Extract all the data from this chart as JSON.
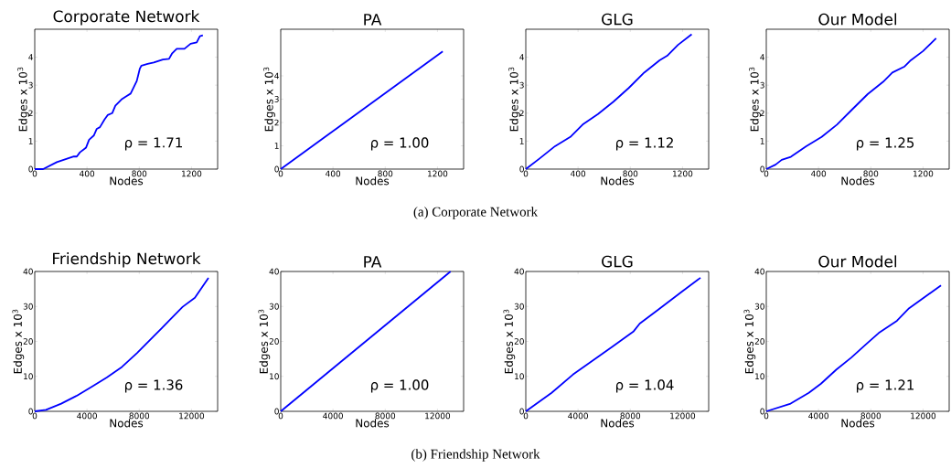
{
  "chart_data": [
    {
      "type": "line",
      "title": "Corporate Network",
      "xlabel": "Nodes",
      "ylabel": "Edges x 10$^{3}$",
      "color": "#0000ff",
      "x": [
        0,
        64,
        169,
        299,
        322,
        346,
        393,
        416,
        452,
        475,
        499,
        534,
        558,
        593,
        617,
        664,
        699,
        734,
        758,
        781,
        805,
        817,
        864,
        911,
        981,
        1028,
        1052,
        1087,
        1146,
        1193,
        1240,
        1264,
        1287
      ],
      "values": [
        0,
        0,
        0.25,
        0.45,
        0.45,
        0.6,
        0.77,
        1.05,
        1.2,
        1.44,
        1.5,
        1.77,
        1.93,
        2.0,
        2.27,
        2.49,
        2.6,
        2.7,
        2.93,
        3.15,
        3.6,
        3.7,
        3.76,
        3.81,
        3.92,
        3.94,
        4.14,
        4.3,
        4.3,
        4.48,
        4.53,
        4.75,
        4.78
      ],
      "xlim": [
        0,
        1400
      ],
      "ylim": [
        0,
        5
      ],
      "xticks": [
        0,
        400,
        800,
        1200
      ],
      "yticks": [
        0,
        1,
        2,
        3,
        4
      ],
      "annotations": [
        "ρ = 1.71",
        "(a) Corporate Network"
      ]
    },
    {
      "type": "line",
      "title": "PA",
      "xlabel": "Nodes",
      "ylabel": "Edges x 10$^{3}$",
      "color": "#0000ff",
      "x": [
        0,
        1240
      ],
      "values": [
        0,
        5.05
      ],
      "xlim": [
        0,
        1400
      ],
      "ylim": [
        0,
        6
      ],
      "xticks": [
        0,
        400,
        800,
        1200
      ],
      "yticks": [
        0,
        1,
        2,
        3,
        4
      ],
      "annotations": [
        "ρ = 1.00"
      ]
    },
    {
      "type": "line",
      "title": "GLG",
      "xlabel": "Nodes",
      "ylabel": "Edges x 10$^{3}$",
      "color": "#0000ff",
      "x": [
        0,
        106,
        224,
        341,
        435,
        553,
        671,
        788,
        906,
        1024,
        1082,
        1165,
        1270
      ],
      "values": [
        0,
        0.38,
        0.82,
        1.15,
        1.59,
        1.97,
        2.41,
        2.9,
        3.45,
        3.89,
        4.05,
        4.44,
        4.82
      ],
      "xlim": [
        0,
        1400
      ],
      "ylim": [
        0,
        5
      ],
      "xticks": [
        0,
        400,
        800,
        1200
      ],
      "yticks": [
        0,
        1,
        2,
        3,
        4
      ],
      "annotations": [
        "ρ = 1.12"
      ]
    },
    {
      "type": "line",
      "title": "Our Model",
      "xlabel": "Nodes",
      "ylabel": "Edges x 10$^{3}$",
      "color": "#0000ff",
      "x": [
        0,
        71,
        118,
        188,
        306,
        424,
        541,
        659,
        776,
        894,
        965,
        1059,
        1106,
        1200,
        1300
      ],
      "values": [
        0,
        0.16,
        0.33,
        0.44,
        0.82,
        1.15,
        1.59,
        2.14,
        2.68,
        3.12,
        3.45,
        3.67,
        3.89,
        4.22,
        4.68
      ],
      "xlim": [
        0,
        1400
      ],
      "ylim": [
        0,
        5
      ],
      "xticks": [
        0,
        400,
        800,
        1200
      ],
      "yticks": [
        0,
        1,
        2,
        3,
        4
      ],
      "annotations": [
        "ρ = 1.25"
      ]
    },
    {
      "type": "line",
      "title": "Friendship Network",
      "xlabel": "Nodes",
      "ylabel": "Edges x 10$^{3}$",
      "color": "#0000ff",
      "x": [
        0,
        861,
        2024,
        3187,
        4349,
        5512,
        6675,
        7838,
        9001,
        9699,
        10397,
        11327,
        12258,
        13300
      ],
      "values": [
        0,
        0.44,
        2.2,
        4.4,
        7.0,
        9.7,
        12.7,
        16.7,
        21.1,
        23.7,
        26.4,
        29.9,
        32.5,
        38.2
      ],
      "xlim": [
        0,
        14000
      ],
      "ylim": [
        0,
        40
      ],
      "xticks": [
        0,
        4000,
        8000,
        12000
      ],
      "yticks": [
        0,
        10,
        20,
        30,
        40
      ],
      "annotations": [
        "ρ = 1.36",
        "(b) Friendship Network"
      ]
    },
    {
      "type": "line",
      "title": "PA",
      "xlabel": "Nodes",
      "ylabel": "Edges x 10$^{3}$",
      "color": "#0000ff",
      "x": [
        0,
        13000
      ],
      "values": [
        0,
        40
      ],
      "xlim": [
        0,
        14000
      ],
      "ylim": [
        0,
        40
      ],
      "xticks": [
        0,
        4000,
        8000,
        12000
      ],
      "yticks": [
        0,
        10,
        20,
        30,
        40
      ],
      "annotations": [
        "ρ = 1.00"
      ]
    },
    {
      "type": "line",
      "title": "GLG",
      "xlabel": "Nodes",
      "ylabel": "Edges x 10$^{3}$",
      "color": "#0000ff",
      "x": [
        0,
        1977,
        3605,
        5466,
        6629,
        8257,
        8722,
        10118,
        11979,
        13374
      ],
      "values": [
        0,
        5.3,
        10.5,
        15.4,
        18.5,
        22.9,
        25.1,
        29.0,
        34.3,
        38.2
      ],
      "xlim": [
        0,
        14000
      ],
      "ylim": [
        0,
        40
      ],
      "xticks": [
        0,
        4000,
        8000,
        12000
      ],
      "yticks": [
        0,
        10,
        20,
        30,
        40
      ],
      "annotations": [
        "ρ = 1.04"
      ]
    },
    {
      "type": "line",
      "title": "Our Model",
      "xlabel": "Nodes",
      "ylabel": "Edges x 10$^{3}$",
      "color": "#0000ff",
      "x": [
        0,
        1861,
        3256,
        4187,
        5350,
        6513,
        7676,
        8606,
        10001,
        10932,
        13374
      ],
      "values": [
        0,
        2.2,
        5.3,
        7.9,
        11.9,
        15.4,
        19.3,
        22.4,
        25.9,
        29.5,
        36.0
      ],
      "xlim": [
        0,
        14000
      ],
      "ylim": [
        0,
        40
      ],
      "xticks": [
        0,
        4000,
        8000,
        12000
      ],
      "yticks": [
        0,
        10,
        20,
        30,
        40
      ],
      "annotations": [
        "ρ = 1.21"
      ]
    }
  ]
}
